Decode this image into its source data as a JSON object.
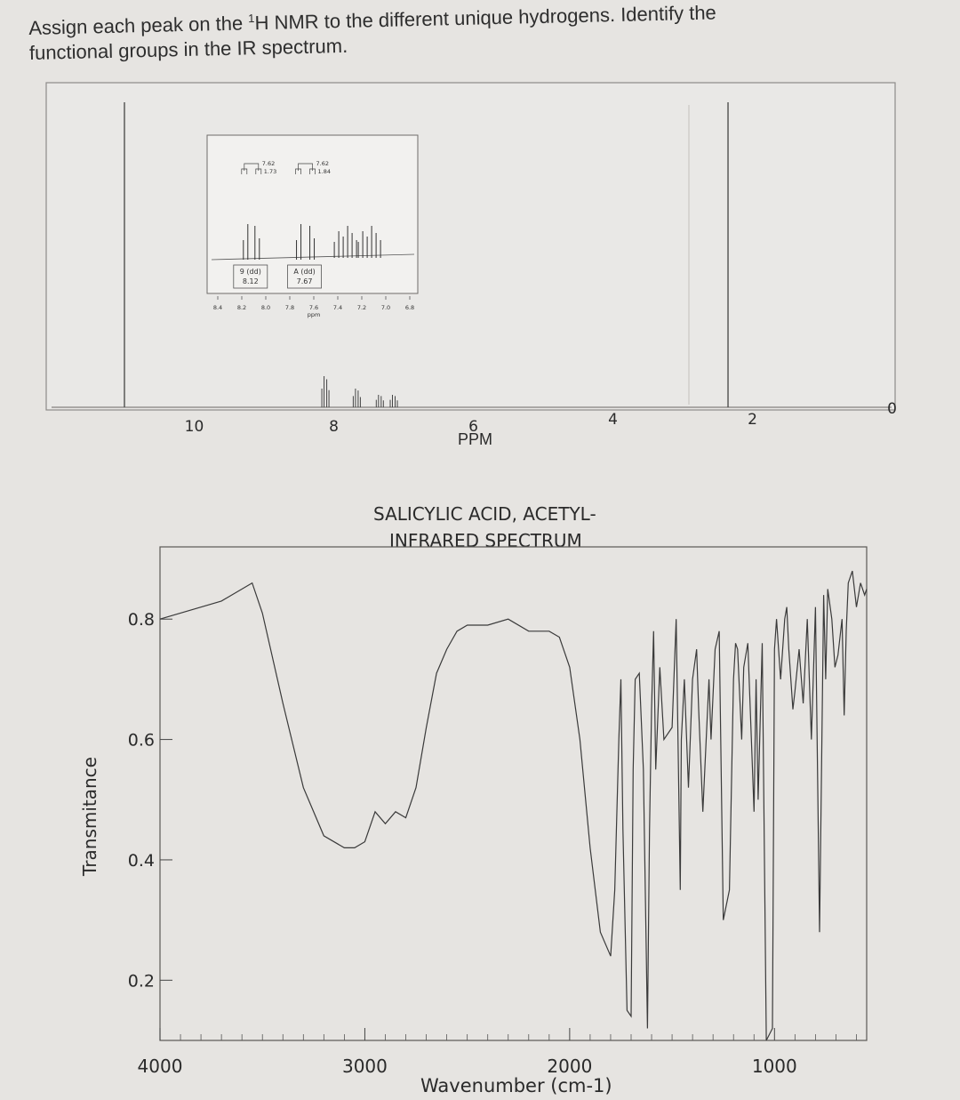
{
  "question": {
    "line1_prefix": "Assign each peak on the ",
    "line1_sup": "1",
    "line1_suffix": "H NMR to the different unique hydrogens. Identify the",
    "line2": "functional groups in the IR spectrum."
  },
  "chart_data": [
    {
      "type": "line",
      "title": "",
      "xlabel": "PPM",
      "ylabel": "",
      "xlim": [
        11,
        0
      ],
      "x_ticks": [
        "10",
        "8",
        "6",
        "4",
        "2",
        "0"
      ],
      "x_tick_values": [
        10,
        8,
        6,
        4,
        2,
        0
      ],
      "grid": false,
      "peaks": [
        {
          "ppm": 11.0,
          "rel_height": 0.98
        },
        {
          "ppm": 8.12,
          "rel_height": 0.1
        },
        {
          "ppm": 7.67,
          "rel_height": 0.06
        },
        {
          "ppm": 7.34,
          "rel_height": 0.04
        },
        {
          "ppm": 7.14,
          "rel_height": 0.04
        },
        {
          "ppm": 2.35,
          "rel_height": 0.98
        }
      ],
      "inset": {
        "xlim": [
          8.4,
          6.8
        ],
        "x_ticks": [
          "8.4",
          "8.2",
          "8.0",
          "7.8",
          "7.6",
          "7.4",
          "7.2",
          "7.0",
          "6.8"
        ],
        "x_tick_values": [
          8.4,
          8.2,
          8.0,
          7.8,
          7.6,
          7.4,
          7.2,
          7.0,
          6.8
        ],
        "xlabel": "ppm",
        "multiplets": [
          {
            "label": "9 (dd)",
            "shift": "8.12",
            "center": 8.12,
            "coupling": [
              "7.62",
              "1.73"
            ]
          },
          {
            "label": "A (dd)",
            "shift": "7.67",
            "center": 7.67,
            "coupling": [
              "7.62",
              "1.84"
            ]
          }
        ],
        "other_multiplets": [
          7.34,
          7.14
        ]
      }
    },
    {
      "type": "line",
      "title": "SALICYLIC ACID, ACETYL-",
      "subtitle": "INFRARED SPECTRUM",
      "xlabel": "Wavenumber (cm-1)",
      "ylabel": "Transmitance",
      "xlim": [
        4000,
        550
      ],
      "ylim": [
        0.1,
        0.92
      ],
      "x_ticks": [
        "4000",
        "3000",
        "2000",
        "1000"
      ],
      "x_tick_values": [
        4000,
        3000,
        2000,
        1000
      ],
      "y_ticks": [
        "0.8",
        "0.6",
        "0.4",
        "0.2"
      ],
      "y_tick_values": [
        0.8,
        0.6,
        0.4,
        0.2
      ],
      "grid": false,
      "series": [
        {
          "x": [
            4000,
            3800,
            3700,
            3650,
            3600,
            3550,
            3500,
            3400,
            3300,
            3200,
            3100,
            3050,
            3000,
            2950,
            2900,
            2850,
            2800,
            2750,
            2700,
            2650,
            2600,
            2550,
            2500,
            2400,
            2300,
            2200,
            2100,
            2050,
            2000,
            1950,
            1900,
            1850,
            1800,
            1780,
            1760,
            1750,
            1740,
            1720,
            1700,
            1690,
            1680,
            1660,
            1640,
            1620,
            1610,
            1600,
            1590,
            1580,
            1560,
            1540,
            1500,
            1480,
            1460,
            1455,
            1440,
            1420,
            1400,
            1380,
            1370,
            1350,
            1320,
            1310,
            1290,
            1270,
            1250,
            1220,
            1200,
            1190,
            1180,
            1160,
            1150,
            1130,
            1100,
            1090,
            1080,
            1060,
            1040,
            1010,
            1000,
            990,
            970,
            950,
            940,
            930,
            920,
            910,
            900,
            880,
            860,
            840,
            820,
            800,
            780,
            760,
            750,
            740,
            720,
            705,
            690,
            670,
            660,
            650,
            640,
            620,
            600,
            580,
            560,
            550
          ],
          "y": [
            0.8,
            0.82,
            0.83,
            0.84,
            0.85,
            0.86,
            0.81,
            0.66,
            0.52,
            0.44,
            0.42,
            0.42,
            0.43,
            0.48,
            0.46,
            0.48,
            0.47,
            0.52,
            0.62,
            0.71,
            0.75,
            0.78,
            0.79,
            0.79,
            0.8,
            0.78,
            0.78,
            0.77,
            0.72,
            0.6,
            0.42,
            0.28,
            0.24,
            0.35,
            0.6,
            0.7,
            0.45,
            0.15,
            0.14,
            0.55,
            0.7,
            0.71,
            0.55,
            0.12,
            0.45,
            0.65,
            0.78,
            0.55,
            0.72,
            0.6,
            0.62,
            0.8,
            0.35,
            0.6,
            0.7,
            0.52,
            0.7,
            0.75,
            0.65,
            0.48,
            0.7,
            0.6,
            0.75,
            0.78,
            0.3,
            0.35,
            0.7,
            0.76,
            0.75,
            0.6,
            0.72,
            0.76,
            0.48,
            0.7,
            0.5,
            0.76,
            0.1,
            0.12,
            0.75,
            0.8,
            0.7,
            0.8,
            0.82,
            0.75,
            0.7,
            0.65,
            0.68,
            0.75,
            0.66,
            0.8,
            0.6,
            0.82,
            0.28,
            0.84,
            0.7,
            0.85,
            0.8,
            0.72,
            0.74,
            0.8,
            0.64,
            0.78,
            0.86,
            0.88,
            0.82,
            0.86,
            0.84,
            0.85
          ]
        }
      ]
    }
  ]
}
